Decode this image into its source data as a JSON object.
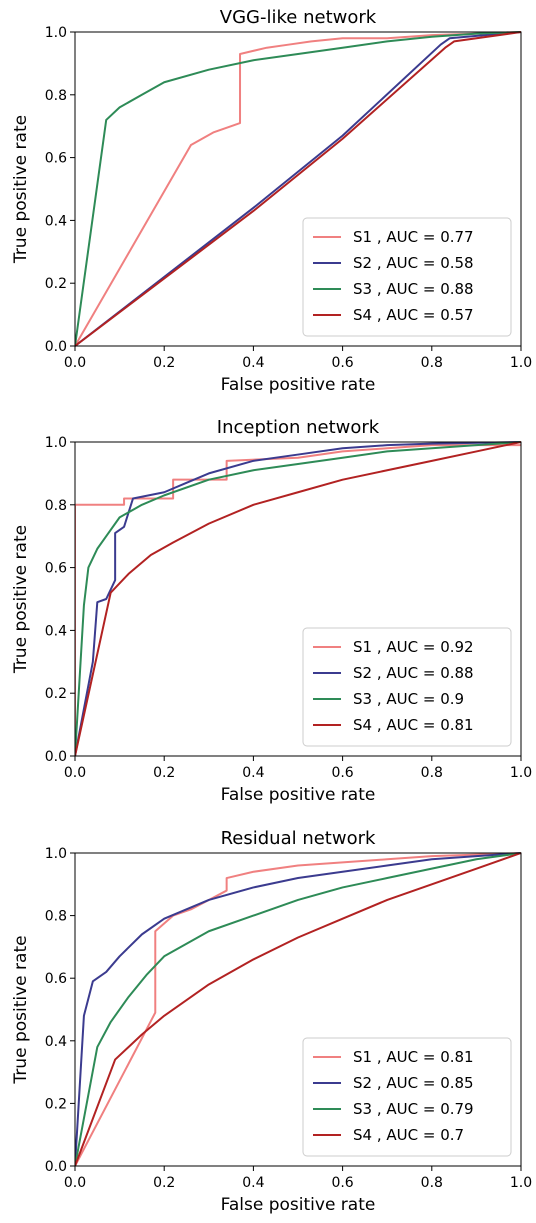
{
  "chart_data": [
    {
      "type": "line",
      "title": "VGG-like network",
      "xlabel": "False positive rate",
      "ylabel": "True positive rate",
      "xlim": [
        0,
        1
      ],
      "ylim": [
        0,
        1
      ],
      "xticks": [
        "0.0",
        "0.2",
        "0.4",
        "0.6",
        "0.8",
        "1.0"
      ],
      "yticks": [
        "0.0",
        "0.2",
        "0.4",
        "0.6",
        "0.8",
        "1.0"
      ],
      "grid": false,
      "legend_position": "lower-right",
      "series": [
        {
          "name": "S1",
          "legend": "S1 , AUC = 0.77",
          "color": "#f08080",
          "points": [
            [
              0,
              0
            ],
            [
              0.26,
              0.64
            ],
            [
              0.31,
              0.68
            ],
            [
              0.37,
              0.71
            ],
            [
              0.37,
              0.93
            ],
            [
              0.43,
              0.95
            ],
            [
              0.48,
              0.96
            ],
            [
              0.53,
              0.97
            ],
            [
              0.6,
              0.98
            ],
            [
              0.7,
              0.98
            ],
            [
              0.8,
              0.99
            ],
            [
              0.9,
              0.995
            ],
            [
              1,
              1
            ]
          ]
        },
        {
          "name": "S2",
          "legend": "S2 , AUC = 0.58",
          "color": "#3b3b8f",
          "points": [
            [
              0,
              0
            ],
            [
              0.4,
              0.44
            ],
            [
              0.6,
              0.67
            ],
            [
              0.82,
              0.96
            ],
            [
              0.84,
              0.98
            ],
            [
              1,
              1
            ]
          ]
        },
        {
          "name": "S3",
          "legend": "S3 , AUC = 0.88",
          "color": "#2e8b57",
          "points": [
            [
              0,
              0
            ],
            [
              0.07,
              0.72
            ],
            [
              0.1,
              0.76
            ],
            [
              0.15,
              0.8
            ],
            [
              0.2,
              0.84
            ],
            [
              0.3,
              0.88
            ],
            [
              0.4,
              0.91
            ],
            [
              0.5,
              0.93
            ],
            [
              0.6,
              0.95
            ],
            [
              0.7,
              0.97
            ],
            [
              0.8,
              0.985
            ],
            [
              0.9,
              0.995
            ],
            [
              1,
              1
            ]
          ]
        },
        {
          "name": "S4",
          "legend": "S4 , AUC = 0.57",
          "color": "#b22222",
          "points": [
            [
              0,
              0
            ],
            [
              0.4,
              0.43
            ],
            [
              0.6,
              0.66
            ],
            [
              0.83,
              0.95
            ],
            [
              0.85,
              0.97
            ],
            [
              1,
              1
            ]
          ]
        }
      ]
    },
    {
      "type": "line",
      "title": "Inception network",
      "xlabel": "False positive rate",
      "ylabel": "True positive rate",
      "xlim": [
        0,
        1
      ],
      "ylim": [
        0,
        1
      ],
      "xticks": [
        "0.0",
        "0.2",
        "0.4",
        "0.6",
        "0.8",
        "1.0"
      ],
      "yticks": [
        "0.0",
        "0.2",
        "0.4",
        "0.6",
        "0.8",
        "1.0"
      ],
      "grid": false,
      "legend_position": "lower-right",
      "series": [
        {
          "name": "S1",
          "legend": "S1 , AUC = 0.92",
          "color": "#f08080",
          "points": [
            [
              0,
              0
            ],
            [
              0,
              0.8
            ],
            [
              0.11,
              0.8
            ],
            [
              0.11,
              0.82
            ],
            [
              0.22,
              0.82
            ],
            [
              0.22,
              0.88
            ],
            [
              0.34,
              0.88
            ],
            [
              0.34,
              0.94
            ],
            [
              0.5,
              0.95
            ],
            [
              0.6,
              0.97
            ],
            [
              0.7,
              0.98
            ],
            [
              0.8,
              0.99
            ],
            [
              0.9,
              0.99
            ],
            [
              1,
              0.99
            ]
          ]
        },
        {
          "name": "S2",
          "legend": "S2 , AUC = 0.88",
          "color": "#3b3b8f",
          "points": [
            [
              0,
              0
            ],
            [
              0.04,
              0.3
            ],
            [
              0.05,
              0.49
            ],
            [
              0.07,
              0.5
            ],
            [
              0.09,
              0.56
            ],
            [
              0.09,
              0.71
            ],
            [
              0.11,
              0.73
            ],
            [
              0.13,
              0.82
            ],
            [
              0.2,
              0.84
            ],
            [
              0.25,
              0.87
            ],
            [
              0.3,
              0.9
            ],
            [
              0.4,
              0.94
            ],
            [
              0.5,
              0.96
            ],
            [
              0.6,
              0.98
            ],
            [
              0.7,
              0.99
            ],
            [
              0.8,
              0.995
            ],
            [
              1,
              1
            ]
          ]
        },
        {
          "name": "S3",
          "legend": "S3 , AUC = 0.9",
          "color": "#2e8b57",
          "points": [
            [
              0,
              0
            ],
            [
              0.02,
              0.48
            ],
            [
              0.03,
              0.6
            ],
            [
              0.05,
              0.66
            ],
            [
              0.07,
              0.7
            ],
            [
              0.1,
              0.76
            ],
            [
              0.15,
              0.8
            ],
            [
              0.2,
              0.83
            ],
            [
              0.3,
              0.88
            ],
            [
              0.4,
              0.91
            ],
            [
              0.5,
              0.93
            ],
            [
              0.6,
              0.95
            ],
            [
              0.7,
              0.97
            ],
            [
              0.8,
              0.98
            ],
            [
              0.9,
              0.99
            ],
            [
              1,
              1
            ]
          ]
        },
        {
          "name": "S4",
          "legend": "S4 , AUC = 0.81",
          "color": "#b22222",
          "points": [
            [
              0,
              0
            ],
            [
              0.08,
              0.52
            ],
            [
              0.12,
              0.58
            ],
            [
              0.17,
              0.64
            ],
            [
              0.22,
              0.68
            ],
            [
              0.3,
              0.74
            ],
            [
              0.4,
              0.8
            ],
            [
              0.5,
              0.84
            ],
            [
              0.6,
              0.88
            ],
            [
              0.7,
              0.91
            ],
            [
              0.8,
              0.94
            ],
            [
              0.9,
              0.97
            ],
            [
              1,
              1
            ]
          ]
        }
      ]
    },
    {
      "type": "line",
      "title": "Residual network",
      "xlabel": "False positive rate",
      "ylabel": "True positive rate",
      "xlim": [
        0,
        1
      ],
      "ylim": [
        0,
        1
      ],
      "xticks": [
        "0.0",
        "0.2",
        "0.4",
        "0.6",
        "0.8",
        "1.0"
      ],
      "yticks": [
        "0.0",
        "0.2",
        "0.4",
        "0.6",
        "0.8",
        "1.0"
      ],
      "grid": false,
      "legend_position": "lower-right",
      "series": [
        {
          "name": "S1",
          "legend": "S1 , AUC = 0.81",
          "color": "#f08080",
          "points": [
            [
              0,
              0
            ],
            [
              0.18,
              0.49
            ],
            [
              0.18,
              0.75
            ],
            [
              0.22,
              0.8
            ],
            [
              0.26,
              0.82
            ],
            [
              0.3,
              0.85
            ],
            [
              0.34,
              0.88
            ],
            [
              0.34,
              0.92
            ],
            [
              0.4,
              0.94
            ],
            [
              0.5,
              0.96
            ],
            [
              0.6,
              0.97
            ],
            [
              0.7,
              0.98
            ],
            [
              0.8,
              0.99
            ],
            [
              0.9,
              0.995
            ],
            [
              1,
              1
            ]
          ]
        },
        {
          "name": "S2",
          "legend": "S2 , AUC = 0.85",
          "color": "#3b3b8f",
          "points": [
            [
              0,
              0
            ],
            [
              0.02,
              0.48
            ],
            [
              0.04,
              0.59
            ],
            [
              0.07,
              0.62
            ],
            [
              0.1,
              0.67
            ],
            [
              0.15,
              0.74
            ],
            [
              0.2,
              0.79
            ],
            [
              0.3,
              0.85
            ],
            [
              0.4,
              0.89
            ],
            [
              0.5,
              0.92
            ],
            [
              0.6,
              0.94
            ],
            [
              0.7,
              0.96
            ],
            [
              0.8,
              0.98
            ],
            [
              0.9,
              0.99
            ],
            [
              1,
              1
            ]
          ]
        },
        {
          "name": "S3",
          "legend": "S3 , AUC = 0.79",
          "color": "#2e8b57",
          "points": [
            [
              0,
              0
            ],
            [
              0.05,
              0.38
            ],
            [
              0.08,
              0.46
            ],
            [
              0.12,
              0.54
            ],
            [
              0.16,
              0.61
            ],
            [
              0.2,
              0.67
            ],
            [
              0.3,
              0.75
            ],
            [
              0.4,
              0.8
            ],
            [
              0.5,
              0.85
            ],
            [
              0.6,
              0.89
            ],
            [
              0.7,
              0.92
            ],
            [
              0.8,
              0.95
            ],
            [
              0.9,
              0.98
            ],
            [
              1,
              1
            ]
          ]
        },
        {
          "name": "S4",
          "legend": "S4 , AUC = 0.7",
          "color": "#b22222",
          "points": [
            [
              0,
              0
            ],
            [
              0.09,
              0.34
            ],
            [
              0.15,
              0.42
            ],
            [
              0.2,
              0.48
            ],
            [
              0.3,
              0.58
            ],
            [
              0.4,
              0.66
            ],
            [
              0.5,
              0.73
            ],
            [
              0.6,
              0.79
            ],
            [
              0.7,
              0.85
            ],
            [
              0.8,
              0.9
            ],
            [
              0.9,
              0.95
            ],
            [
              1,
              1
            ]
          ]
        }
      ]
    }
  ]
}
